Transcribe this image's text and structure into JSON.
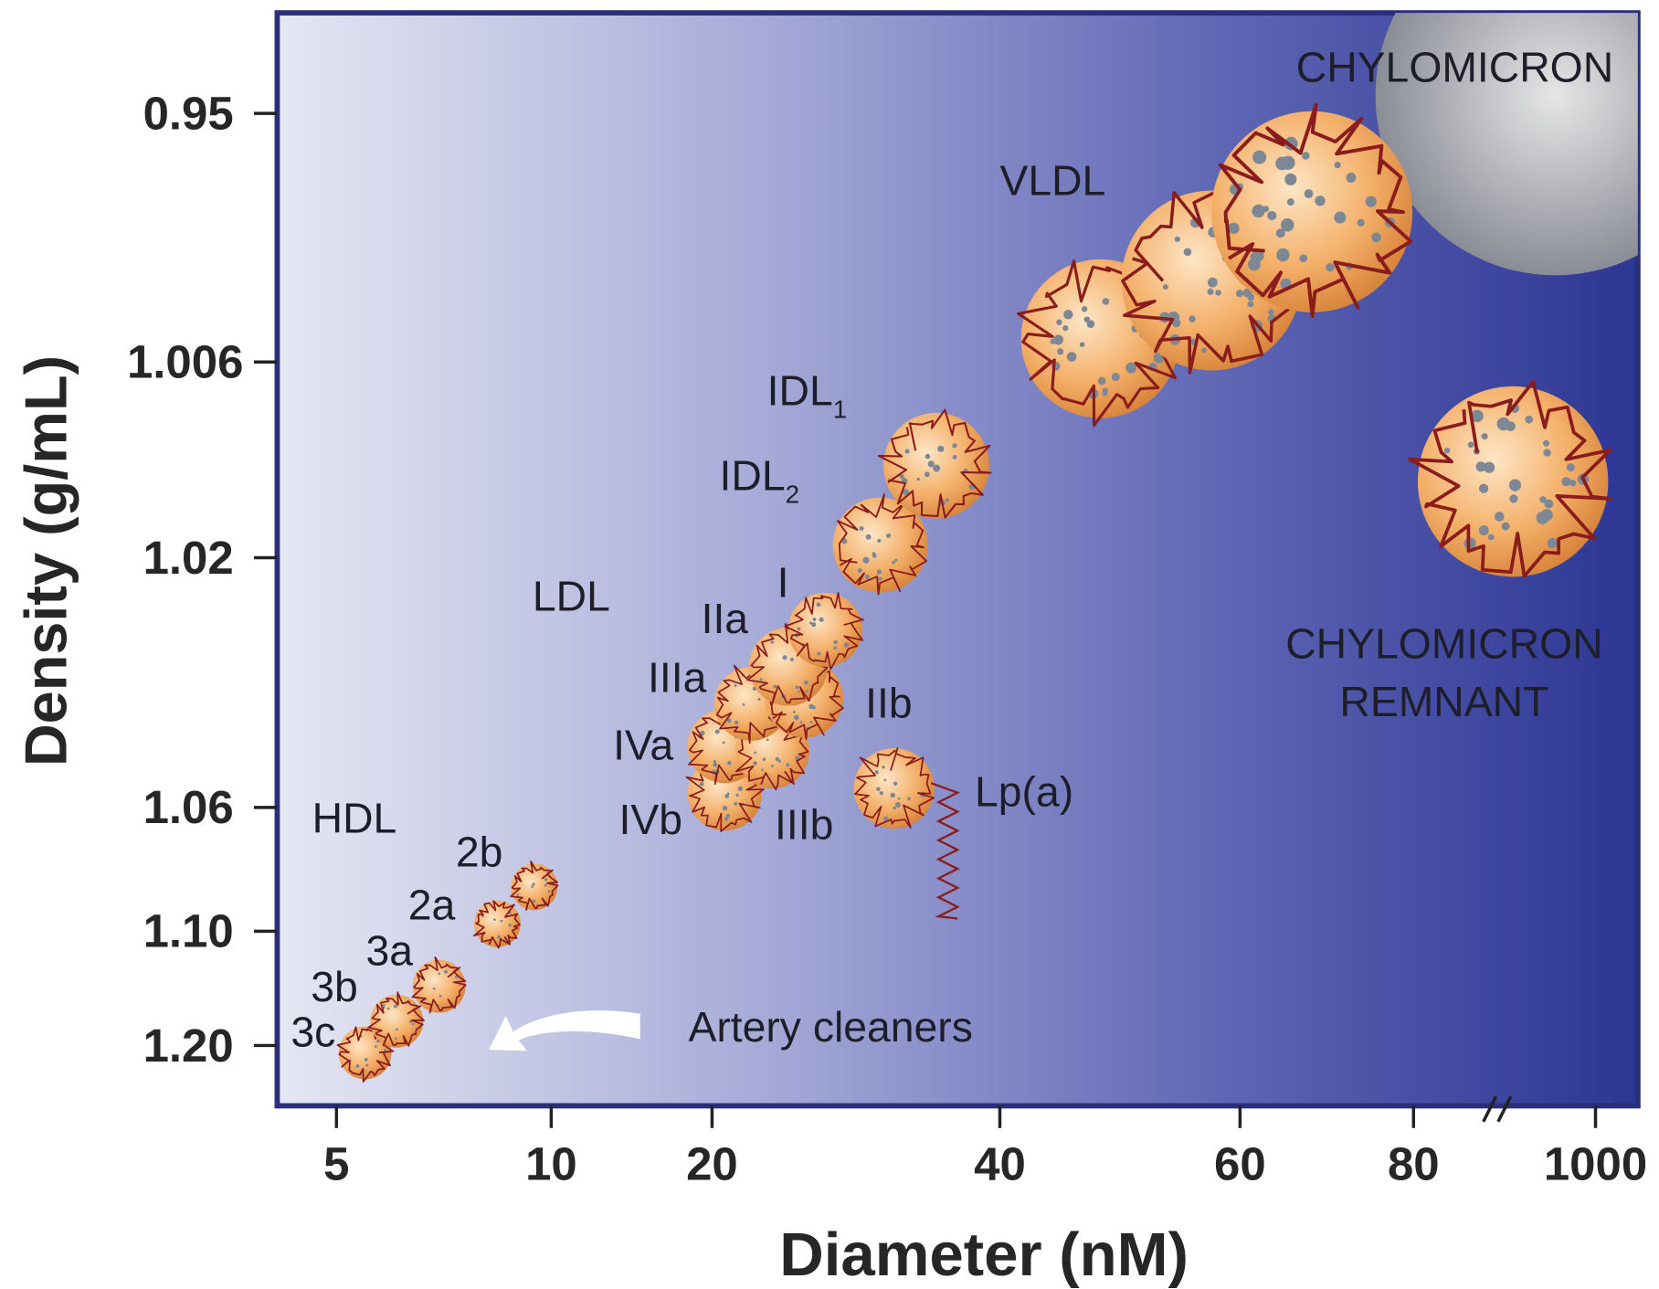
{
  "x_axis": {
    "title": "Diameter (nM)",
    "ticks": [
      "5",
      "10",
      "20",
      "40",
      "60",
      "80",
      "1000"
    ]
  },
  "y_axis": {
    "title": "Density (g/mL)",
    "ticks": [
      "0.95",
      "1.006",
      "1.02",
      "1.06",
      "1.10",
      "1.20"
    ]
  },
  "labels": {
    "chylomicron": "CHYLOMICRON",
    "vldl": "VLDL",
    "idl1": {
      "text": "IDL",
      "sub": "1"
    },
    "idl2": {
      "text": "IDL",
      "sub": "2"
    },
    "ldl": "LDL",
    "ldl_i": "I",
    "ldl_iia": "IIa",
    "ldl_iib": "IIb",
    "ldl_iiia": "IIIa",
    "ldl_iiib": "IIIb",
    "ldl_iva": "IVa",
    "ldl_ivb": "IVb",
    "lpa": "Lp(a)",
    "remnant": [
      "CHYLOMICRON",
      "REMNANT"
    ],
    "hdl": "HDL",
    "hdl_2b": "2b",
    "hdl_2a": "2a",
    "hdl_3a": "3a",
    "hdl_3b": "3b",
    "hdl_3c": "3c",
    "artery": "Artery cleaners"
  }
}
